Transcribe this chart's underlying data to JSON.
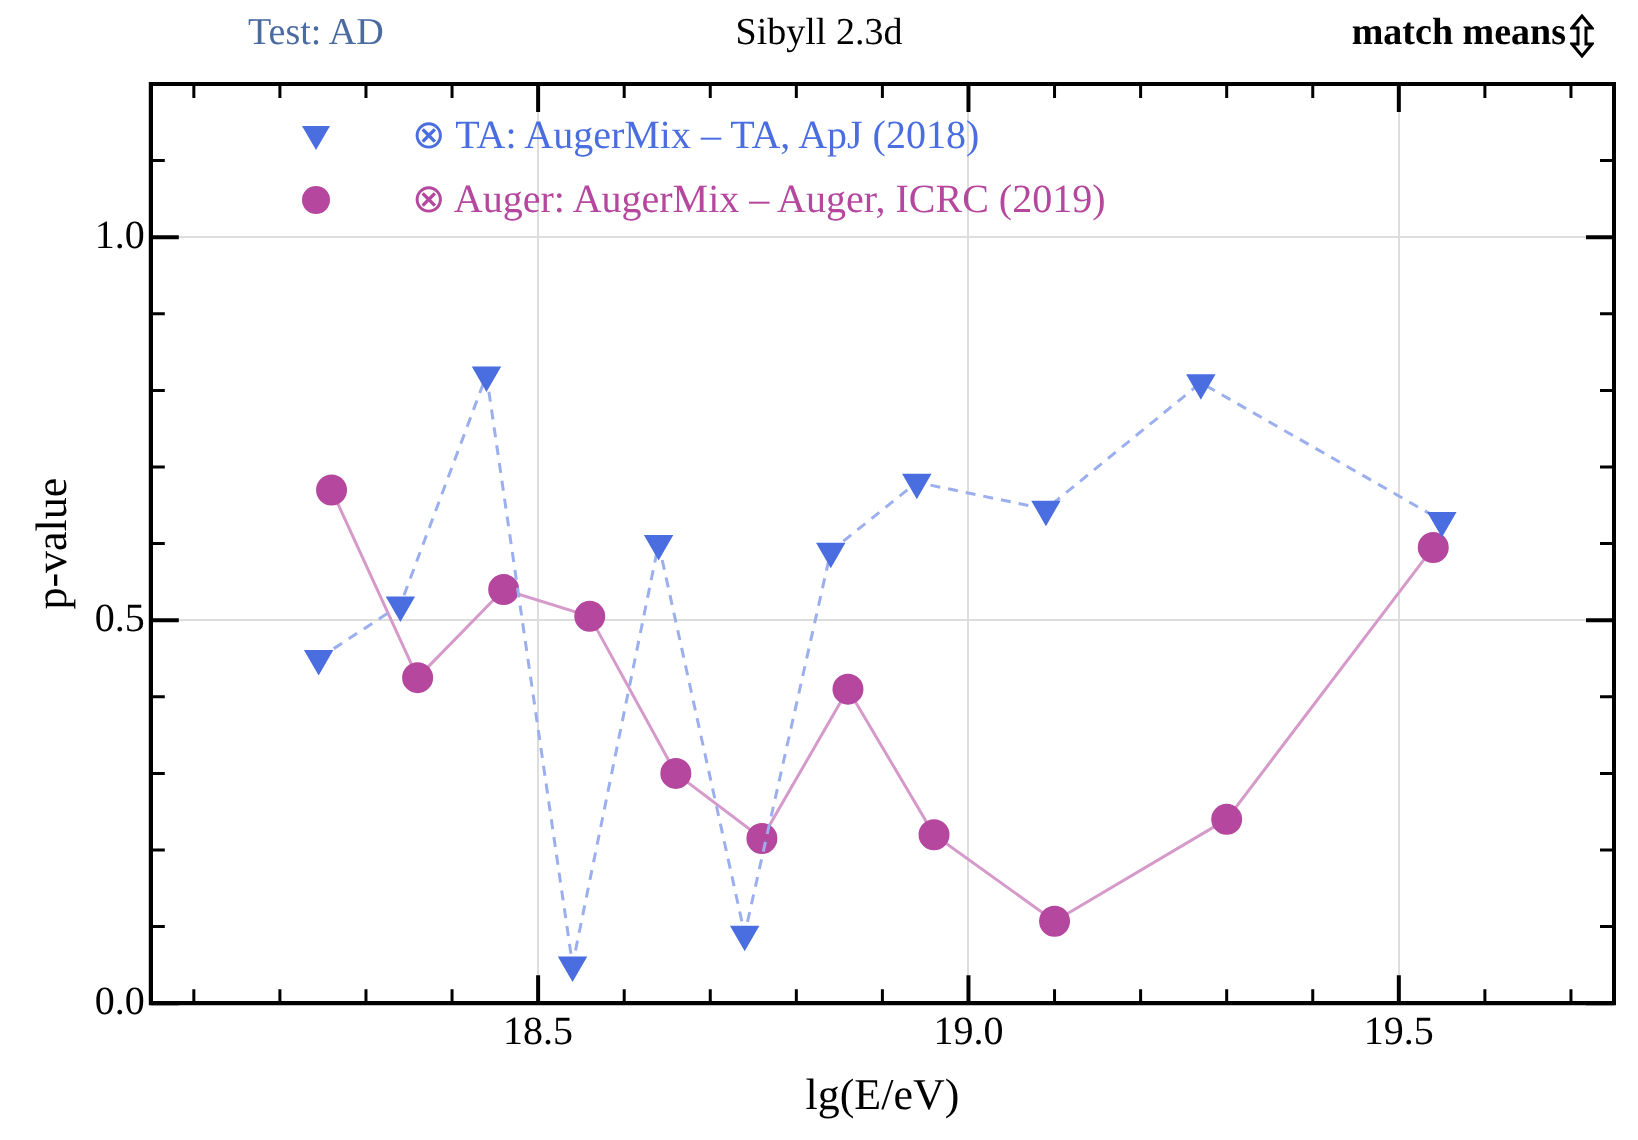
{
  "chart_data": {
    "type": "line",
    "title": "Sibyll 2.3d",
    "annotations": [
      "Test: AD",
      "match means"
    ],
    "xlabel": "lg(E/eV)",
    "ylabel": "p-value",
    "xlim": [
      18.05,
      19.75
    ],
    "xticks": [
      {
        "value": 18.1,
        "label": null
      },
      {
        "value": 18.2,
        "label": null
      },
      {
        "value": 18.3,
        "label": null
      },
      {
        "value": 18.4,
        "label": null
      },
      {
        "value": 18.5,
        "label": "18.5"
      },
      {
        "value": 18.6,
        "label": null
      },
      {
        "value": 18.7,
        "label": null
      },
      {
        "value": 18.8,
        "label": null
      },
      {
        "value": 18.9,
        "label": null
      },
      {
        "value": 19.0,
        "label": "19.0"
      },
      {
        "value": 19.1,
        "label": null
      },
      {
        "value": 19.2,
        "label": null
      },
      {
        "value": 19.3,
        "label": null
      },
      {
        "value": 19.4,
        "label": null
      },
      {
        "value": 19.5,
        "label": "19.5"
      },
      {
        "value": 19.6,
        "label": null
      },
      {
        "value": 19.7,
        "label": null
      }
    ],
    "ylim": [
      0,
      1.2
    ],
    "yticks": [
      {
        "value": 0,
        "label": "0.0"
      },
      {
        "value": 0.1,
        "label": null
      },
      {
        "value": 0.2,
        "label": null
      },
      {
        "value": 0.3,
        "label": null
      },
      {
        "value": 0.4,
        "label": null
      },
      {
        "value": 0.5,
        "label": "0.5"
      },
      {
        "value": 0.6,
        "label": null
      },
      {
        "value": 0.7,
        "label": null
      },
      {
        "value": 0.8,
        "label": null
      },
      {
        "value": 0.9,
        "label": null
      },
      {
        "value": 1.0,
        "label": "1.0"
      },
      {
        "value": 1.1,
        "label": null
      }
    ],
    "grid": true,
    "legend": "top left",
    "series": [
      {
        "name": "⊗ TA: AugerMix – TA, ApJ (2018)",
        "color": "#4a6ee0",
        "marker": "triangle",
        "line_style": "dashed",
        "x": [
          18.245,
          18.34,
          18.44,
          18.54,
          18.64,
          18.74,
          18.84,
          18.94,
          19.09,
          19.27,
          19.55
        ],
        "values": [
          0.45,
          0.52,
          0.82,
          0.05,
          0.6,
          0.09,
          0.59,
          0.68,
          0.645,
          0.81,
          0.63
        ]
      },
      {
        "name": "⊗ Auger: AugerMix – Auger, ICRC (2019)",
        "color": "#b5479e",
        "marker": "circle",
        "line_style": "solid",
        "x": [
          18.26,
          18.36,
          18.46,
          18.56,
          18.66,
          18.76,
          18.86,
          18.96,
          19.1,
          19.3,
          19.54
        ],
        "values": [
          0.67,
          0.425,
          0.54,
          0.505,
          0.3,
          0.215,
          0.41,
          0.22,
          0.107,
          0.24,
          0.595
        ]
      }
    ]
  }
}
